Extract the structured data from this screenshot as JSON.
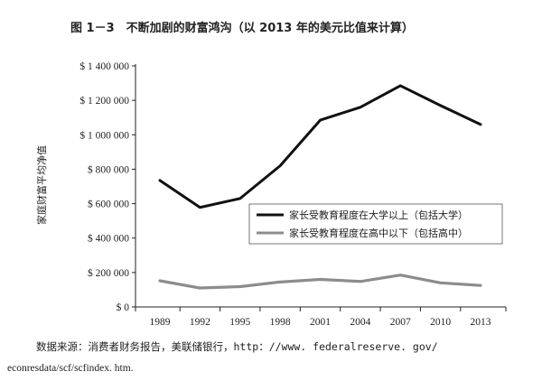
{
  "chart_data": {
    "type": "line",
    "title": "图 1－3　不断加剧的财富鸿沟（以 2013 年的美元比值来计算）",
    "ylabel": "家庭财富平均净值",
    "xlabel": "",
    "x": [
      "1989",
      "1992",
      "1995",
      "1998",
      "2001",
      "2004",
      "2007",
      "2010",
      "2013"
    ],
    "ylim": [
      0,
      1400000
    ],
    "y_ticks": [
      {
        "value": 0,
        "label": "$ 0"
      },
      {
        "value": 200000,
        "label": "$ 200 000"
      },
      {
        "value": 400000,
        "label": "$ 400 000"
      },
      {
        "value": 600000,
        "label": "$ 600 000"
      },
      {
        "value": 800000,
        "label": "$ 800 000"
      },
      {
        "value": 1000000,
        "label": "$ 1 000 000"
      },
      {
        "value": 1200000,
        "label": "$ 1 200 000"
      },
      {
        "value": 1400000,
        "label": "$ 1 400 000"
      }
    ],
    "series": [
      {
        "name": "家长受教育程度在大学以上（包括大学）",
        "color": "#111111",
        "values": [
          735000,
          578000,
          630000,
          820000,
          1085000,
          1160000,
          1285000,
          1170000,
          1060000
        ]
      },
      {
        "name": "家长受教育程度在高中以下（包括高中）",
        "color": "#8c8c8c",
        "values": [
          152000,
          110000,
          118000,
          145000,
          160000,
          148000,
          185000,
          140000,
          125000
        ]
      }
    ],
    "grid": false,
    "legend_position": "center-right"
  },
  "source": {
    "line1": "数据来源：消费者财务报告，美联储银行，http：//www. federalreserve. gov/",
    "line2": "econresdata/scf/scfindex. htm."
  }
}
